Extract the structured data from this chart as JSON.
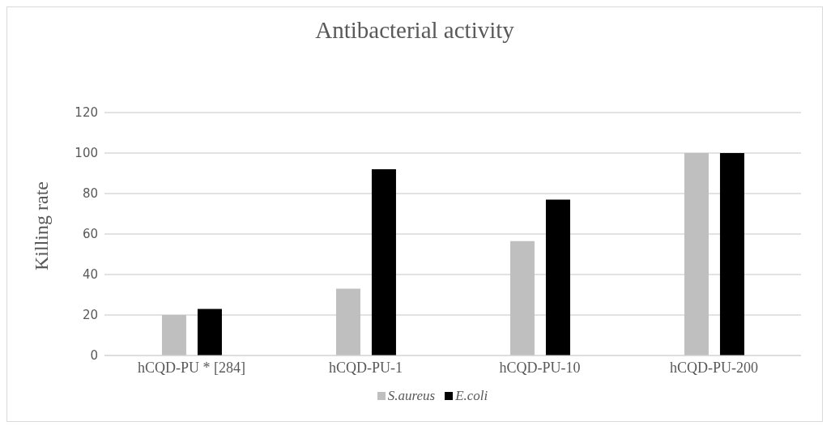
{
  "chart_data": {
    "type": "bar",
    "title": "Antibacterial activity",
    "ylabel": "Killing rate",
    "categories": [
      "hCQD-PU * [284]",
      "hCQD-PU-1",
      "hCQD-PU-10",
      "hCQD-PU-200"
    ],
    "series": [
      {
        "name": "S.aureus",
        "color": "#bfbfbf",
        "values": [
          20,
          33,
          56.5,
          100
        ]
      },
      {
        "name": "E.coli",
        "color": "#000000",
        "values": [
          23,
          92,
          77,
          100
        ]
      }
    ],
    "ylim": [
      0,
      120
    ],
    "yticks": [
      0,
      20,
      40,
      60,
      80,
      100,
      120
    ],
    "grid": "y",
    "legend": "bottom"
  }
}
